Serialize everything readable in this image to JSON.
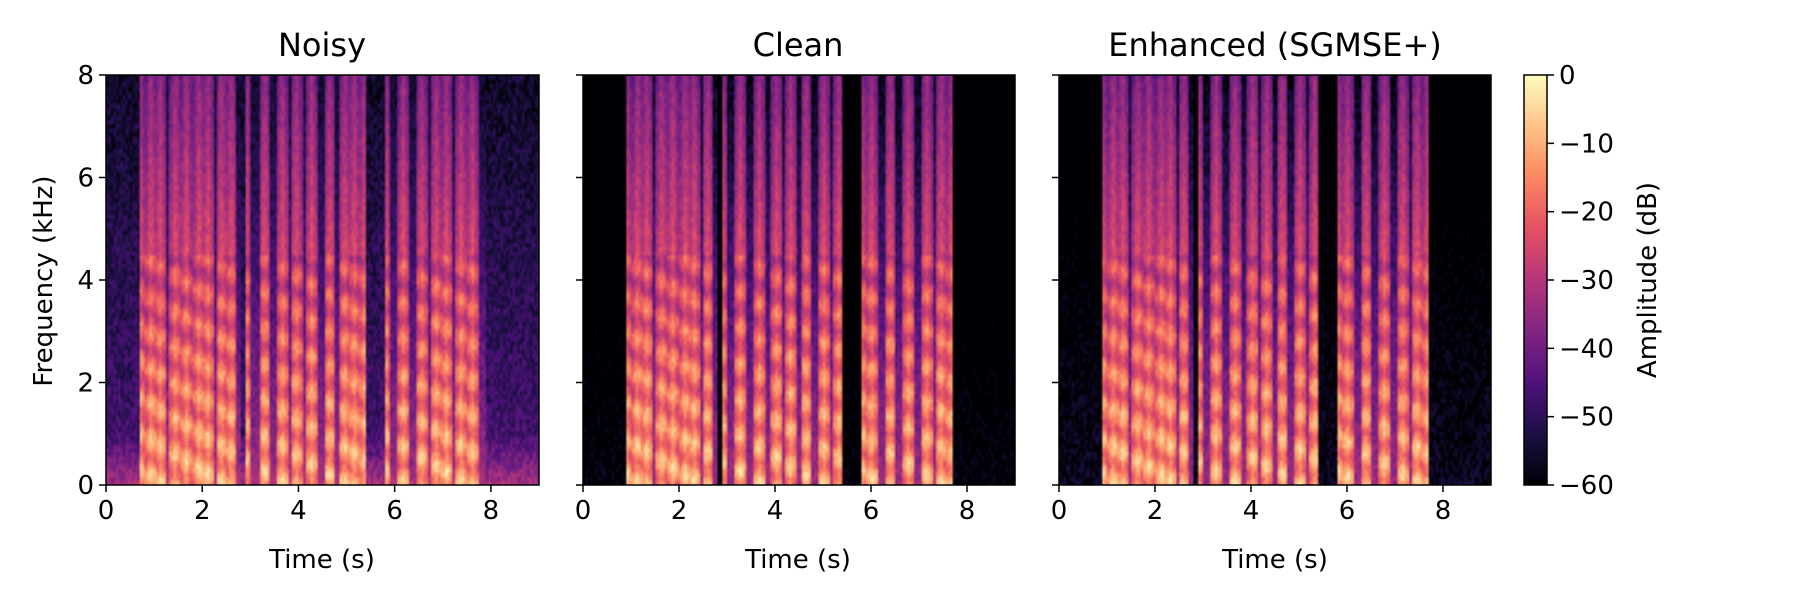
{
  "chart_data": [
    {
      "type": "heatmap",
      "title": "Noisy",
      "xlabel": "Time (s)",
      "ylabel": "Frequency (kHz)",
      "xlim": [
        0,
        9.0
      ],
      "ylim": [
        0,
        8
      ],
      "xticks": [
        0,
        2,
        4,
        6,
        8
      ],
      "yticks": [
        0,
        2,
        4,
        6,
        8
      ],
      "colormap": "magma",
      "speech_segments_s": [
        [
          0.7,
          2.8
        ],
        [
          2.9,
          5.4
        ],
        [
          5.8,
          7.9
        ]
      ],
      "noise_floor_db": -46
    },
    {
      "type": "heatmap",
      "title": "Clean",
      "xlabel": "Time (s)",
      "ylabel": "",
      "xlim": [
        0,
        9.0
      ],
      "ylim": [
        0,
        8
      ],
      "xticks": [
        0,
        2,
        4,
        6,
        8
      ],
      "yticks": [
        0,
        2,
        4,
        6,
        8
      ],
      "colormap": "magma",
      "speech_segments_s": [
        [
          0.9,
          2.8
        ],
        [
          2.9,
          5.4
        ],
        [
          5.8,
          7.7
        ]
      ],
      "noise_floor_db": -60
    },
    {
      "type": "heatmap",
      "title": "Enhanced (SGMSE+)",
      "xlabel": "Time (s)",
      "ylabel": "",
      "xlim": [
        0,
        9.0
      ],
      "ylim": [
        0,
        8
      ],
      "xticks": [
        0,
        2,
        4,
        6,
        8
      ],
      "yticks": [
        0,
        2,
        4,
        6,
        8
      ],
      "colormap": "magma",
      "speech_segments_s": [
        [
          0.9,
          2.8
        ],
        [
          2.9,
          5.4
        ],
        [
          5.8,
          7.7
        ]
      ],
      "noise_floor_db": -57
    }
  ],
  "colorbar": {
    "label": "Amplitude (dB)",
    "range": [
      -60,
      0
    ],
    "ticks": [
      0,
      -10,
      -20,
      -30,
      -40,
      -50,
      -60
    ],
    "tick_labels": [
      "0",
      "−10",
      "−20",
      "−30",
      "−40",
      "−50",
      "−60"
    ]
  },
  "colors": {
    "magma": [
      "#000004",
      "#1c1044",
      "#4f127b",
      "#812581",
      "#b5367a",
      "#e55064",
      "#fb8761",
      "#fec287",
      "#fcfdbf"
    ]
  }
}
